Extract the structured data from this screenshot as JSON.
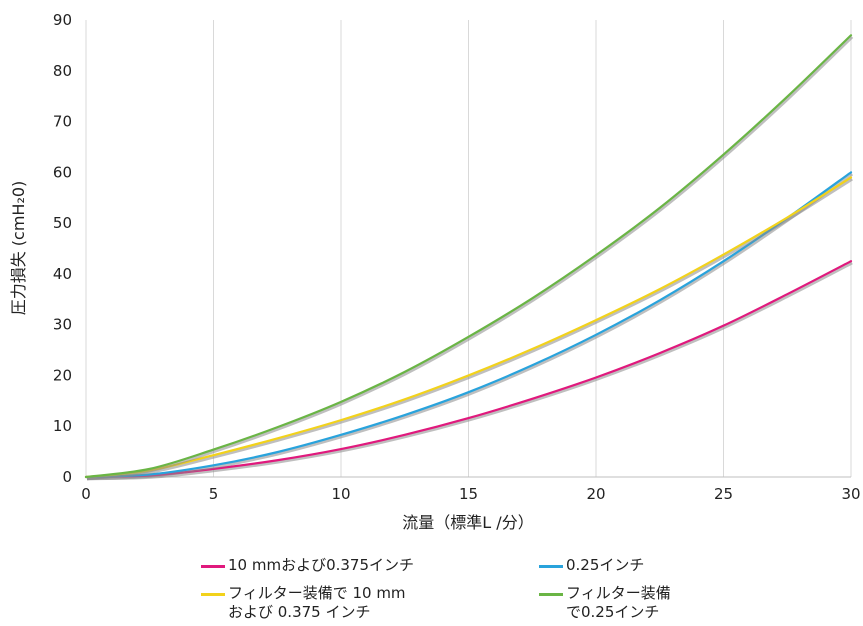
{
  "chart_data": {
    "type": "line",
    "title": "",
    "xlabel": "流量（標準L /分）",
    "ylabel": "圧力損失 (cmH₂0)",
    "xlim": [
      0,
      30
    ],
    "ylim": [
      0,
      90
    ],
    "xticks": [
      0,
      5,
      10,
      15,
      20,
      25,
      30
    ],
    "yticks": [
      0,
      10,
      20,
      30,
      40,
      50,
      60,
      70,
      80,
      90
    ],
    "grid": "vertical",
    "legend_position": "bottom",
    "x": [
      0,
      2.5,
      5,
      7.5,
      10,
      12.5,
      15,
      17.5,
      20,
      22.5,
      25,
      27.5,
      30
    ],
    "series": [
      {
        "name": "10 mmおよび0.375インチ",
        "color": "#e0197d",
        "values": [
          0,
          0.3,
          1.6,
          3.3,
          5.5,
          8.3,
          11.6,
          15.4,
          19.6,
          24.4,
          29.8,
          36.0,
          42.5
        ]
      },
      {
        "name": "0.25インチ",
        "color": "#29a3dc",
        "values": [
          0,
          0.5,
          2.3,
          4.9,
          8.3,
          12.2,
          16.7,
          22.0,
          28.0,
          34.8,
          42.5,
          51.0,
          60.0
        ]
      },
      {
        "name": "フィルター装備で 10 mm\nおよび 0.375 インチ",
        "color": "#f2d21b",
        "values": [
          0,
          1.3,
          4.3,
          7.6,
          11.2,
          15.3,
          20.0,
          25.2,
          30.9,
          37.0,
          43.8,
          51.1,
          59.0
        ]
      },
      {
        "name": "フィルター装備\nで0.25インチ",
        "color": "#6ab545",
        "values": [
          0,
          1.6,
          5.4,
          9.8,
          14.8,
          20.7,
          27.6,
          35.2,
          43.7,
          53.0,
          63.5,
          74.9,
          87.0
        ]
      }
    ]
  }
}
